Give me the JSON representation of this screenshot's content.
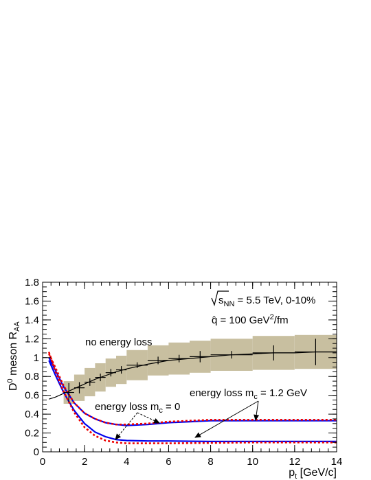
{
  "chart_data": {
    "type": "line",
    "x_range": [
      0,
      14
    ],
    "y_range": [
      0,
      1.8
    ],
    "x_ticks": [
      "0",
      "2",
      "4",
      "6",
      "8",
      "10",
      "12",
      "14"
    ],
    "y_ticks": [
      "0",
      "0.2",
      "0.4",
      "0.6",
      "0.8",
      "1",
      "1.2",
      "1.4",
      "1.6",
      "1.8"
    ],
    "xlabel": {
      "main": "p",
      "sub": "t",
      "rest": " [GeV/c]"
    },
    "ylabel": {
      "pre": "D",
      "sup": "0",
      "mid": " meson R",
      "sub": "AA"
    },
    "legend": {
      "line1": {
        "sqrt": "s",
        "sub": "NN",
        "rest": " = 5.5 TeV, 0-10%"
      },
      "line2": {
        "pre": "q̂ = 100 GeV",
        "sup": "2",
        "post": "/fm"
      }
    },
    "annotations": {
      "no_eloss": "no energy loss",
      "eloss_m0": {
        "pre": "energy loss m",
        "sub": "c",
        "post": " = 0"
      },
      "eloss_m12": {
        "pre": "energy loss m",
        "sub": "c",
        "post": " = 1.2 GeV"
      }
    },
    "colors": {
      "reference": "#000000",
      "band": "#c8bfa0",
      "massive": "#0000ee",
      "massless": "#ee0000"
    },
    "series": [
      {
        "style": "black-line",
        "x": [
          0.3,
          0.6,
          1.0,
          1.5,
          2.0,
          2.5,
          3.0,
          3.5,
          4.0,
          5.0,
          6.0,
          7.0,
          8.0,
          9.0,
          10.0,
          11.0,
          12.0,
          13.0,
          14.0
        ],
        "y": [
          0.56,
          0.58,
          0.62,
          0.67,
          0.72,
          0.77,
          0.81,
          0.85,
          0.88,
          0.93,
          0.97,
          0.99,
          1.01,
          1.03,
          1.04,
          1.05,
          1.05,
          1.06,
          1.06
        ]
      },
      {
        "style": "data-points",
        "x": [
          1.25,
          1.75,
          2.25,
          2.75,
          3.25,
          3.75,
          4.5,
          5.5,
          6.5,
          7.5,
          9.0,
          11.0,
          13.0
        ],
        "y": [
          0.63,
          0.68,
          0.74,
          0.79,
          0.84,
          0.87,
          0.92,
          0.97,
          0.99,
          1.01,
          1.03,
          1.05,
          1.06
        ],
        "y_err": [
          0.1,
          0.06,
          0.04,
          0.04,
          0.04,
          0.04,
          0.03,
          0.04,
          0.04,
          0.06,
          0.04,
          0.08,
          0.14
        ],
        "x_err": [
          0.25,
          0.25,
          0.25,
          0.25,
          0.25,
          0.25,
          0.5,
          0.5,
          0.5,
          0.5,
          1.0,
          1.0,
          1.0
        ],
        "sys": [
          0.12,
          0.14,
          0.15,
          0.15,
          0.15,
          0.15,
          0.16,
          0.16,
          0.17,
          0.17,
          0.17,
          0.18,
          0.18
        ]
      },
      {
        "style": "blue-upper",
        "x": [
          0.3,
          0.6,
          1.0,
          1.5,
          2.0,
          2.5,
          3.0,
          3.5,
          4.0,
          5.0,
          6.0,
          7.0,
          8.0,
          10.0,
          12.0,
          14.0
        ],
        "y": [
          1.0,
          0.87,
          0.69,
          0.52,
          0.41,
          0.35,
          0.31,
          0.29,
          0.28,
          0.29,
          0.31,
          0.32,
          0.33,
          0.33,
          0.33,
          0.33
        ]
      },
      {
        "style": "red-upper",
        "x": [
          0.3,
          0.6,
          1.0,
          1.5,
          2.0,
          2.5,
          3.0,
          3.5,
          4.0,
          5.0,
          6.0,
          7.0,
          8.0,
          10.0,
          12.0,
          14.0
        ],
        "y": [
          1.04,
          0.9,
          0.7,
          0.52,
          0.41,
          0.35,
          0.31,
          0.29,
          0.29,
          0.3,
          0.32,
          0.33,
          0.34,
          0.34,
          0.34,
          0.34
        ]
      },
      {
        "style": "blue-lower",
        "x": [
          0.3,
          0.6,
          1.0,
          1.5,
          2.0,
          2.5,
          3.0,
          3.5,
          4.0,
          5.0,
          6.0,
          8.0,
          10.0,
          12.0,
          14.0
        ],
        "y": [
          0.97,
          0.82,
          0.63,
          0.44,
          0.3,
          0.21,
          0.16,
          0.13,
          0.12,
          0.115,
          0.115,
          0.11,
          0.11,
          0.11,
          0.11
        ]
      },
      {
        "style": "red-lower",
        "x": [
          0.3,
          0.6,
          1.0,
          1.5,
          2.0,
          2.5,
          3.0,
          3.5,
          4.0,
          5.0,
          6.0,
          8.0,
          10.0,
          12.0,
          14.0
        ],
        "y": [
          1.06,
          0.86,
          0.64,
          0.42,
          0.26,
          0.17,
          0.12,
          0.1,
          0.09,
          0.09,
          0.09,
          0.095,
          0.1,
          0.1,
          0.1
        ]
      }
    ]
  }
}
